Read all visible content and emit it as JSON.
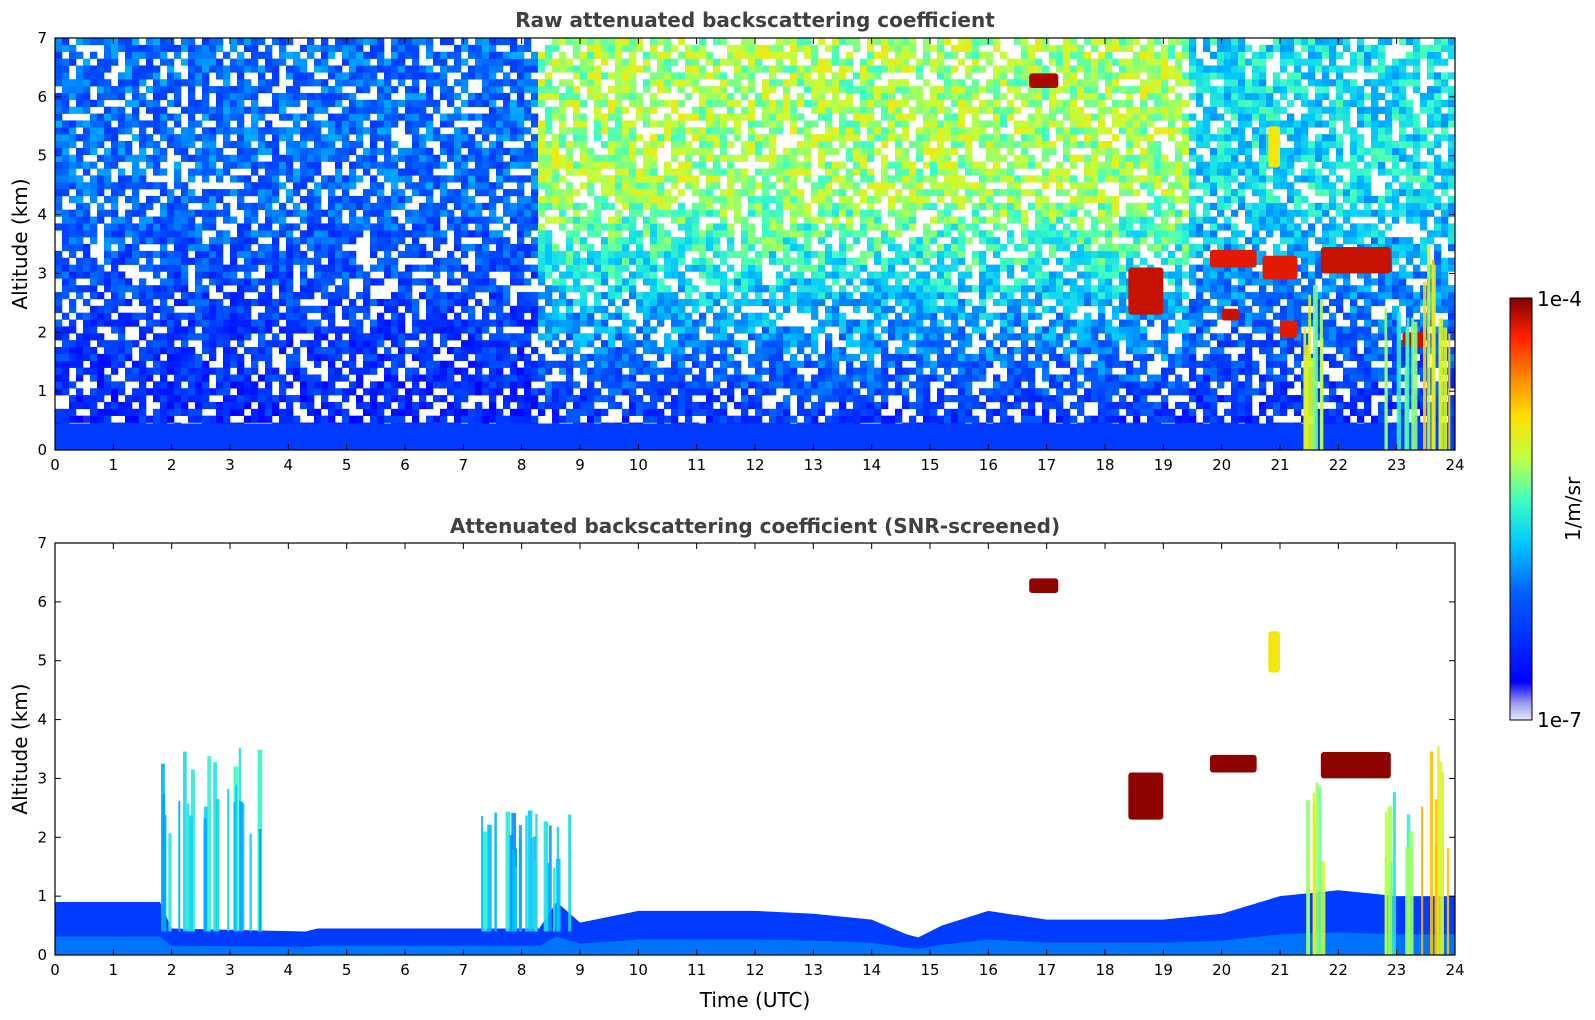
{
  "chart_data": [
    {
      "type": "heatmap",
      "title": "Raw attenuated backscattering coefficient",
      "xlabel": "",
      "ylabel": "Altitude (km)",
      "xlim": [
        0,
        24
      ],
      "ylim": [
        0,
        7
      ],
      "x_ticks": [
        "0",
        "1",
        "2",
        "3",
        "4",
        "5",
        "6",
        "7",
        "8",
        "9",
        "10",
        "11",
        "12",
        "13",
        "14",
        "15",
        "16",
        "17",
        "18",
        "19",
        "20",
        "21",
        "22",
        "23",
        "24"
      ],
      "y_ticks": [
        "0",
        "1",
        "2",
        "3",
        "4",
        "5",
        "6",
        "7"
      ],
      "features": [
        {
          "kind": "surface_layer",
          "t0": 0,
          "t1": 24,
          "z0": 0.0,
          "z1": 0.45,
          "level": 0.22
        },
        {
          "kind": "noise_background",
          "t0": 0,
          "t1": 8.3,
          "level": 0.3
        },
        {
          "kind": "noise_background",
          "t0": 8.3,
          "t1": 19.5,
          "level": 0.6
        },
        {
          "kind": "noise_background",
          "t0": 19.5,
          "t1": 24,
          "level": 0.45
        },
        {
          "kind": "cloud",
          "t0": 16.7,
          "t1": 17.2,
          "z0": 6.15,
          "z1": 6.4,
          "level": 0.97
        },
        {
          "kind": "cloud",
          "t0": 18.4,
          "t1": 19.0,
          "z0": 2.3,
          "z1": 3.1,
          "level": 0.95
        },
        {
          "kind": "cloud",
          "t0": 19.8,
          "t1": 20.6,
          "z0": 3.1,
          "z1": 3.4,
          "level": 0.93
        },
        {
          "kind": "cloud",
          "t0": 20.7,
          "t1": 21.3,
          "z0": 2.9,
          "z1": 3.3,
          "level": 0.93
        },
        {
          "kind": "cloud",
          "t0": 21.7,
          "t1": 22.9,
          "z0": 3.0,
          "z1": 3.45,
          "level": 0.95
        },
        {
          "kind": "cloud",
          "t0": 20.0,
          "t1": 20.3,
          "z0": 2.2,
          "z1": 2.4,
          "level": 0.95
        },
        {
          "kind": "cloud",
          "t0": 21.0,
          "t1": 21.3,
          "z0": 1.9,
          "z1": 2.2,
          "level": 0.93
        },
        {
          "kind": "cloud",
          "t0": 23.1,
          "t1": 23.5,
          "z0": 1.75,
          "z1": 2.0,
          "level": 0.95
        },
        {
          "kind": "thin_layer",
          "t0": 20.8,
          "t1": 21.0,
          "z0": 4.8,
          "z1": 5.5,
          "level": 0.7
        },
        {
          "kind": "precip_column",
          "t0": 21.4,
          "t1": 21.7,
          "z0": 0.0,
          "z1": 3.0,
          "level": 0.62
        },
        {
          "kind": "precip_column",
          "t0": 22.7,
          "t1": 23.3,
          "z0": 0.0,
          "z1": 2.8,
          "level": 0.55
        },
        {
          "kind": "precip_column",
          "t0": 23.4,
          "t1": 23.9,
          "z0": 0.0,
          "z1": 3.6,
          "level": 0.7
        }
      ]
    },
    {
      "type": "heatmap",
      "title": "Attenuated backscattering coefficient (SNR-screened)",
      "xlabel": "Time (UTC)",
      "ylabel": "Altitude (km)",
      "xlim": [
        0,
        24
      ],
      "ylim": [
        0,
        7
      ],
      "x_ticks": [
        "0",
        "1",
        "2",
        "3",
        "4",
        "5",
        "6",
        "7",
        "8",
        "9",
        "10",
        "11",
        "12",
        "13",
        "14",
        "15",
        "16",
        "17",
        "18",
        "19",
        "20",
        "21",
        "22",
        "23",
        "24"
      ],
      "y_ticks": [
        "0",
        "1",
        "2",
        "3",
        "4",
        "5",
        "6",
        "7"
      ],
      "boundary_layer_top": [
        [
          0,
          0.9
        ],
        [
          1.8,
          0.9
        ],
        [
          2.0,
          0.45
        ],
        [
          4.3,
          0.4
        ],
        [
          4.5,
          0.45
        ],
        [
          8.3,
          0.45
        ],
        [
          8.6,
          0.9
        ],
        [
          9.0,
          0.55
        ],
        [
          10.0,
          0.75
        ],
        [
          12.0,
          0.75
        ],
        [
          13.0,
          0.7
        ],
        [
          14.0,
          0.6
        ],
        [
          14.6,
          0.35
        ],
        [
          14.8,
          0.3
        ],
        [
          15.2,
          0.5
        ],
        [
          16.0,
          0.75
        ],
        [
          17.0,
          0.6
        ],
        [
          18.0,
          0.6
        ],
        [
          19.0,
          0.6
        ],
        [
          20.0,
          0.7
        ],
        [
          21.0,
          1.0
        ],
        [
          22.0,
          1.1
        ],
        [
          23.0,
          1.0
        ],
        [
          24.0,
          1.0
        ]
      ],
      "features": [
        {
          "kind": "aerosol_columns",
          "t0": 1.8,
          "t1": 3.5,
          "z0": 0.4,
          "z1": 3.7,
          "level": 0.45
        },
        {
          "kind": "aerosol_columns",
          "t0": 7.2,
          "t1": 8.8,
          "z0": 0.4,
          "z1": 2.5,
          "level": 0.42
        },
        {
          "kind": "cloud",
          "t0": 16.7,
          "t1": 17.2,
          "z0": 6.15,
          "z1": 6.4,
          "level": 0.99
        },
        {
          "kind": "cloud",
          "t0": 18.4,
          "t1": 19.0,
          "z0": 2.3,
          "z1": 3.1,
          "level": 0.99
        },
        {
          "kind": "cloud",
          "t0": 19.8,
          "t1": 20.6,
          "z0": 3.1,
          "z1": 3.4,
          "level": 0.99
        },
        {
          "kind": "cloud",
          "t0": 21.7,
          "t1": 22.9,
          "z0": 3.0,
          "z1": 3.45,
          "level": 0.99
        },
        {
          "kind": "thin_layer",
          "t0": 20.8,
          "t1": 21.0,
          "z0": 4.8,
          "z1": 5.5,
          "level": 0.7
        },
        {
          "kind": "precip_column",
          "t0": 21.4,
          "t1": 21.7,
          "z0": 0.0,
          "z1": 3.0,
          "level": 0.62
        },
        {
          "kind": "precip_column",
          "t0": 22.7,
          "t1": 23.3,
          "z0": 0.0,
          "z1": 2.8,
          "level": 0.55
        },
        {
          "kind": "precip_column",
          "t0": 23.4,
          "t1": 23.9,
          "z0": 0.0,
          "z1": 3.6,
          "level": 0.7
        }
      ]
    }
  ],
  "colorbar": {
    "label": "1/m/sr",
    "max_label": "1e-4",
    "min_label": "1e-7",
    "colormap": "jet"
  }
}
